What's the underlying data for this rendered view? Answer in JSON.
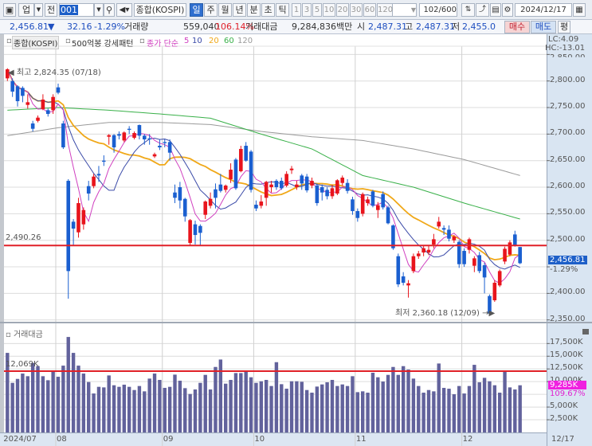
{
  "toolbar": {
    "market_dropdown": "업",
    "all_button": "전",
    "code_input": "001",
    "index_name": "종합(KOSPI)",
    "periods": [
      "일",
      "주",
      "월",
      "년",
      "분",
      "초",
      "틱"
    ],
    "selected_period": "일",
    "intervals": [
      "1",
      "3",
      "5",
      "10",
      "20",
      "30",
      "60",
      "120"
    ],
    "count": "102",
    "count_max": "/600",
    "date": "2024/12/17"
  },
  "quote": {
    "price": "2,456.81",
    "direction": "▼",
    "change": "32.16",
    "change_pct": "-1.29%",
    "volume_label": "거래량",
    "volume": "559,040",
    "volume_pct": "106.14%",
    "amount_label": "거래대금",
    "amount": "9,284,836백만",
    "open_label": "시",
    "open": "2,487.31",
    "high_label": "고",
    "high": "2,487.31",
    "low_label": "저",
    "low": "2,455.0",
    "buy": "매수",
    "sell": "매도",
    "avg": "평"
  },
  "legend": {
    "name": "종합(KOSPI)",
    "pattern": "500억봉 강세패턴",
    "ma_label": "종가 단순",
    "ma": [
      "5",
      "10",
      "20",
      "60",
      "120"
    ]
  },
  "colors": {
    "up": "#e8141c",
    "down": "#1a5fd0",
    "ma5": "#d040c0",
    "ma10": "#3a4aa8",
    "ma20": "#f0a818",
    "ma60": "#38b048",
    "ma120": "#9a9a9a",
    "volume": "#62629c",
    "ref_line": "#e02028"
  },
  "price_panel": {
    "lc": "LC:4.09",
    "hc": "HC:-13.01",
    "high_note": "최고 2,824.35 (07/18)",
    "low_note": "최저 2,360.18 (12/09)",
    "ref_line_label": "2,490.26",
    "ref_value": 2490.26,
    "current_price": "2,456.81",
    "current_pct": "-1.29%",
    "ticks": [
      "2,850.00",
      "2,800.00",
      "2,750.00",
      "2,700.00",
      "2,650.00",
      "2,600.00",
      "2,550.00",
      "2,500.00",
      "2,450.00",
      "2,400.00",
      "2,350.00"
    ]
  },
  "volume_panel": {
    "title": "거래대금",
    "ref_line_label": "12,069K",
    "ref_value": 12069,
    "current": "9,285K",
    "current_pct": "109.67%",
    "ticks": [
      "17,500K",
      "15,000K",
      "12,500K",
      "10,000K",
      "5,000K",
      "2,500K"
    ]
  },
  "x_axis": {
    "labels": [
      "2024/07",
      "08",
      "09",
      "10",
      "11",
      "12"
    ],
    "last_date": "12/17"
  },
  "chart_data": {
    "type": "candlestick",
    "ohlc": [
      [
        2805,
        2824,
        2800,
        2822
      ],
      [
        2800,
        2805,
        2770,
        2780
      ],
      [
        2790,
        2792,
        2752,
        2762
      ],
      [
        2787,
        2790,
        2760,
        2772
      ],
      [
        2755,
        2775,
        2748,
        2760
      ],
      [
        2720,
        2725,
        2705,
        2710
      ],
      [
        2725,
        2735,
        2722,
        2731
      ],
      [
        2747,
        2775,
        2745,
        2765
      ],
      [
        2745,
        2748,
        2733,
        2738
      ],
      [
        2745,
        2775,
        2738,
        2770
      ],
      [
        2788,
        2795,
        2775,
        2778
      ],
      [
        2720,
        2725,
        2672,
        2675
      ],
      [
        2612,
        2615,
        2390,
        2442
      ],
      [
        2535,
        2540,
        2490,
        2522
      ],
      [
        2515,
        2580,
        2505,
        2570
      ],
      [
        2530,
        2562,
        2520,
        2557
      ],
      [
        2602,
        2612,
        2575,
        2588
      ],
      [
        2602,
        2625,
        2598,
        2620
      ],
      [
        2625,
        2640,
        2610,
        2622
      ],
      [
        2650,
        2660,
        2640,
        2648
      ],
      [
        2695,
        2700,
        2680,
        2698
      ],
      [
        2698,
        2700,
        2665,
        2675
      ],
      [
        2700,
        2705,
        2690,
        2697
      ],
      [
        2688,
        2705,
        2685,
        2703
      ],
      [
        2710,
        2715,
        2700,
        2708
      ],
      [
        2693,
        2705,
        2690,
        2702
      ],
      [
        2717,
        2718,
        2690,
        2697
      ],
      [
        2697,
        2700,
        2680,
        2690
      ],
      [
        2692,
        2700,
        2680,
        2690
      ],
      [
        2658,
        2665,
        2655,
        2662
      ],
      [
        2678,
        2690,
        2670,
        2675
      ],
      [
        2685,
        2690,
        2675,
        2683
      ],
      [
        2685,
        2690,
        2650,
        2665
      ],
      [
        2590,
        2605,
        2570,
        2580
      ],
      [
        2600,
        2610,
        2560,
        2575
      ],
      [
        2578,
        2580,
        2535,
        2545
      ],
      [
        2495,
        2540,
        2490,
        2538
      ],
      [
        2530,
        2537,
        2492,
        2510
      ],
      [
        2527,
        2530,
        2490,
        2514
      ],
      [
        2548,
        2575,
        2540,
        2573
      ],
      [
        2565,
        2590,
        2560,
        2578
      ],
      [
        2596,
        2607,
        2560,
        2580
      ],
      [
        2605,
        2625,
        2590,
        2593
      ],
      [
        2595,
        2605,
        2590,
        2603
      ],
      [
        2615,
        2645,
        2608,
        2633
      ],
      [
        2652,
        2655,
        2595,
        2598
      ],
      [
        2630,
        2678,
        2628,
        2672
      ],
      [
        2678,
        2685,
        2648,
        2650
      ],
      [
        2667,
        2670,
        2590,
        2595
      ],
      [
        2567,
        2575,
        2555,
        2560
      ],
      [
        2565,
        2585,
        2560,
        2573
      ],
      [
        2580,
        2612,
        2565,
        2610
      ],
      [
        2600,
        2612,
        2590,
        2605
      ],
      [
        2612,
        2615,
        2595,
        2600
      ],
      [
        2612,
        2618,
        2595,
        2598
      ],
      [
        2603,
        2630,
        2600,
        2625
      ],
      [
        2632,
        2640,
        2625,
        2635
      ],
      [
        2600,
        2612,
        2595,
        2605
      ],
      [
        2622,
        2625,
        2595,
        2607
      ],
      [
        2620,
        2625,
        2590,
        2594
      ],
      [
        2603,
        2618,
        2598,
        2612
      ],
      [
        2603,
        2607,
        2565,
        2570
      ],
      [
        2600,
        2605,
        2575,
        2590
      ],
      [
        2595,
        2600,
        2577,
        2583
      ],
      [
        2583,
        2605,
        2578,
        2598
      ],
      [
        2588,
        2615,
        2585,
        2613
      ],
      [
        2608,
        2622,
        2603,
        2618
      ],
      [
        2608,
        2615,
        2588,
        2593
      ],
      [
        2577,
        2582,
        2548,
        2555
      ],
      [
        2555,
        2560,
        2535,
        2542
      ],
      [
        2550,
        2590,
        2545,
        2587
      ],
      [
        2570,
        2582,
        2565,
        2577
      ],
      [
        2592,
        2595,
        2562,
        2565
      ],
      [
        2557,
        2572,
        2542,
        2566
      ],
      [
        2587,
        2592,
        2558,
        2562
      ],
      [
        2562,
        2565,
        2530,
        2532
      ],
      [
        2528,
        2530,
        2482,
        2485
      ],
      [
        2470,
        2475,
        2412,
        2417
      ],
      [
        2432,
        2440,
        2415,
        2420
      ],
      [
        2415,
        2425,
        2392,
        2419
      ],
      [
        2442,
        2475,
        2438,
        2470
      ],
      [
        2470,
        2480,
        2465,
        2475
      ],
      [
        2477,
        2490,
        2470,
        2485
      ],
      [
        2477,
        2490,
        2472,
        2482
      ],
      [
        2492,
        2512,
        2485,
        2502
      ],
      [
        2526,
        2544,
        2522,
        2535
      ],
      [
        2523,
        2528,
        2510,
        2520
      ],
      [
        2520,
        2528,
        2498,
        2503
      ],
      [
        2500,
        2510,
        2495,
        2507
      ],
      [
        2497,
        2500,
        2448,
        2455
      ],
      [
        2480,
        2485,
        2450,
        2455
      ],
      [
        2482,
        2505,
        2475,
        2502
      ],
      [
        2452,
        2470,
        2440,
        2466
      ],
      [
        2472,
        2478,
        2438,
        2442
      ],
      [
        2453,
        2458,
        2400,
        2430
      ],
      [
        2395,
        2398,
        2360.18,
        2362
      ],
      [
        2387,
        2425,
        2384,
        2420
      ],
      [
        2415,
        2445,
        2412,
        2442
      ],
      [
        2460,
        2488,
        2455,
        2484
      ],
      [
        2473,
        2500,
        2470,
        2496
      ],
      [
        2511,
        2518,
        2488,
        2490
      ],
      [
        2487.31,
        2487.31,
        2455.0,
        2456.81
      ]
    ],
    "volume_k": [
      15660,
      9760,
      10540,
      11590,
      11070,
      13680,
      13050,
      11070,
      10280,
      12110,
      10960,
      13150,
      18790,
      15660,
      13150,
      11590,
      9920,
      7670,
      8980,
      8870,
      11220,
      9290,
      8980,
      9400,
      8980,
      8350,
      9140,
      8090,
      10600,
      11590,
      10340,
      8770,
      8980,
      11380,
      10180,
      8720,
      7570,
      8460,
      9760,
      11330,
      8460,
      12890,
      14350,
      9600,
      10340,
      11690,
      11690,
      12010,
      10860,
      9760,
      10070,
      10340,
      9140,
      13830,
      9500,
      8610,
      10070,
      10070,
      9970,
      8350,
      7830,
      9030,
      9450,
      9870,
      10340,
      9140,
      9450,
      9140,
      11070,
      7930,
      8090,
      7830,
      11750,
      10860,
      10020,
      11330,
      12890,
      11330,
      13050,
      12370,
      10600,
      9140,
      7830,
      8350,
      8090,
      13570,
      8770,
      8610,
      7520,
      9140,
      7670,
      9140,
      13310,
      9870,
      10750,
      10070,
      9290,
      7830,
      12110,
      8870,
      8460,
      9285
    ],
    "ma60_samples": [
      [
        0,
        2745
      ],
      [
        10,
        2750
      ],
      [
        20,
        2745
      ],
      [
        30,
        2738
      ],
      [
        40,
        2730
      ],
      [
        50,
        2700
      ],
      [
        60,
        2672
      ],
      [
        70,
        2622
      ],
      [
        80,
        2600
      ],
      [
        90,
        2570
      ],
      [
        101,
        2540
      ]
    ],
    "ma120_samples": [
      [
        0,
        2697
      ],
      [
        10,
        2712
      ],
      [
        20,
        2722
      ],
      [
        30,
        2722
      ],
      [
        40,
        2718
      ],
      [
        50,
        2705
      ],
      [
        60,
        2695
      ],
      [
        70,
        2688
      ],
      [
        80,
        2672
      ],
      [
        90,
        2652
      ],
      [
        101,
        2622
      ]
    ],
    "month_start_index": [
      0,
      10,
      31,
      49,
      69,
      90
    ],
    "ylim": [
      2340,
      2860
    ],
    "volume_ylim": [
      0,
      20000
    ]
  }
}
